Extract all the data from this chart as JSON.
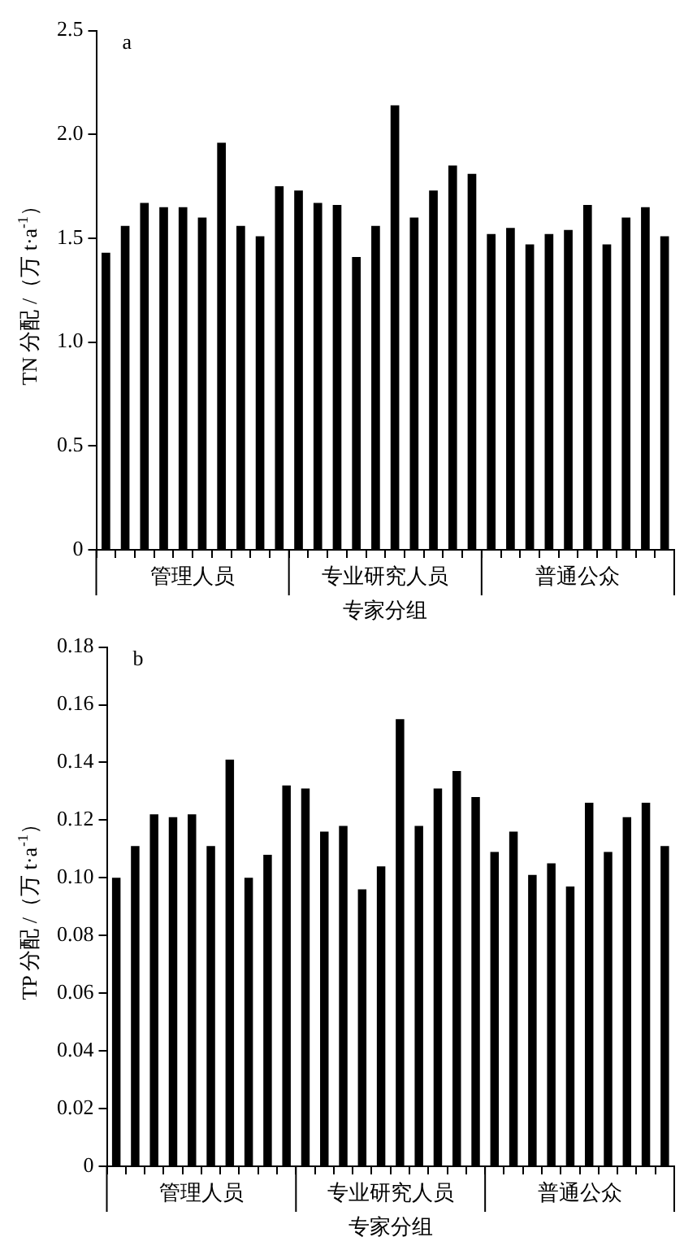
{
  "chart_data": [
    {
      "type": "bar",
      "title": "a",
      "xlabel": "专家分组",
      "ylabel": "TN 分配 /（万 t·a$^{-1}$）",
      "categories": [
        null,
        null,
        null,
        null,
        null,
        null,
        null,
        null,
        null,
        null,
        null,
        null,
        null,
        null,
        null,
        null,
        null,
        null,
        null,
        null,
        null,
        null,
        null,
        null,
        null,
        null,
        null,
        null,
        null,
        null
      ],
      "values": [
        1.43,
        1.56,
        1.67,
        1.65,
        1.65,
        1.6,
        1.96,
        1.56,
        1.51,
        1.75,
        1.73,
        1.67,
        1.66,
        1.41,
        1.56,
        2.14,
        1.6,
        1.73,
        1.85,
        1.81,
        1.52,
        1.55,
        1.47,
        1.52,
        1.54,
        1.66,
        1.47,
        1.6,
        1.65,
        1.51
      ],
      "color": "#000000",
      "ylim": [
        0,
        2.5
      ],
      "yticks": [
        0,
        0.5,
        {
          "value": 1,
          "label": "1.0"
        },
        1.5,
        {
          "value": 2,
          "label": "2.0"
        },
        2.5
      ],
      "grid": false,
      "annotations": [
        "管理人员",
        "专业研究人员",
        "普通公众"
      ]
    },
    {
      "type": "bar",
      "title": "b",
      "xlabel": "专家分组",
      "ylabel": "TP 分配 /（万 t·a$^{-1}$）",
      "categories": [
        null,
        null,
        null,
        null,
        null,
        null,
        null,
        null,
        null,
        null,
        null,
        null,
        null,
        null,
        null,
        null,
        null,
        null,
        null,
        null,
        null,
        null,
        null,
        null,
        null,
        null,
        null,
        null,
        null,
        null
      ],
      "values": [
        0.1,
        0.111,
        0.122,
        0.121,
        0.122,
        0.111,
        0.141,
        0.1,
        0.108,
        0.132,
        0.131,
        0.116,
        0.118,
        0.096,
        0.104,
        0.155,
        0.118,
        0.131,
        0.137,
        0.128,
        0.109,
        0.116,
        0.101,
        0.105,
        0.097,
        0.126,
        0.109,
        0.121,
        0.126,
        0.111
      ],
      "color": "#000000",
      "ylim": [
        0,
        0.18
      ],
      "yticks": [
        0,
        0.02,
        0.04,
        0.06,
        0.08,
        {
          "value": 0.1,
          "label": "0.10"
        },
        0.12,
        0.14,
        0.16,
        0.18
      ],
      "grid": false,
      "annotations": [
        "管理人员",
        "专业研究人员",
        "普通公众"
      ]
    }
  ]
}
